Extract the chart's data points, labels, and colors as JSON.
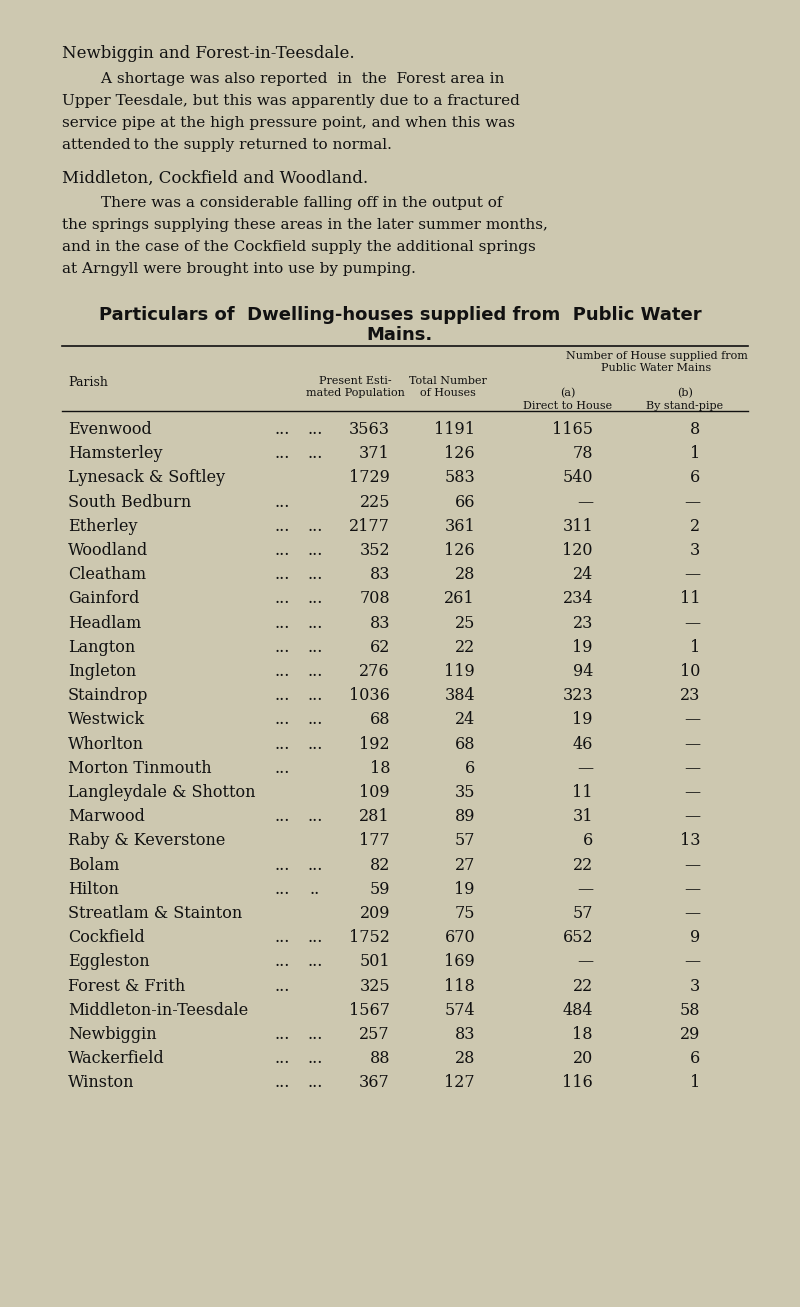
{
  "bg_color": "#cdc8b0",
  "text_color": "#111111",
  "title1": "Newbiggin and Forest-in-Teesdale.",
  "para1_lines": [
    "        A shortage was also reported  in  the  Forest area in",
    "Upper Teesdale, but this was apparently due to a fractured",
    "service pipe at the high pressure point, and when this was",
    "attended to the supply returned to normal."
  ],
  "title2": "Middleton, Cockfield and Woodland.",
  "para2_lines": [
    "        There was a considerable falling off in the output of",
    "the springs supplying these areas in the later summer months,",
    "and in the case of the Cockfield supply the additional springs",
    "at Arngyll were brought into use by pumping."
  ],
  "table_title_line1": "Particulars of  Dwelling-houses supplied from  Public Water",
  "table_title_line2": "Mains.",
  "rows": [
    [
      "Evenwood",
      "...",
      "...",
      "3563",
      "1191",
      "1165",
      "8"
    ],
    [
      "Hamsterley",
      "...",
      "...",
      "371",
      "126",
      "78",
      "1"
    ],
    [
      "Lynesack & Softley",
      "",
      "",
      "1729",
      "583",
      "540",
      "6"
    ],
    [
      "South Bedburn",
      "...",
      "",
      "225",
      "66",
      "—",
      "—"
    ],
    [
      "Etherley",
      "...",
      "...",
      "2177",
      "361",
      "311",
      "2"
    ],
    [
      "Woodland",
      "...",
      "...",
      "352",
      "126",
      "120",
      "3"
    ],
    [
      "Cleatham",
      "...",
      "...",
      "83",
      "28",
      "24",
      "—"
    ],
    [
      "Gainford",
      "...",
      "...",
      "708",
      "261",
      "234",
      "11"
    ],
    [
      "Headlam",
      "...",
      "...",
      "83",
      "25",
      "23",
      "—"
    ],
    [
      "Langton",
      "...",
      "...",
      "62",
      "22",
      "19",
      "1"
    ],
    [
      "Ingleton",
      "...",
      "...",
      "276",
      "119",
      "94",
      "10"
    ],
    [
      "Staindrop",
      "...",
      "...",
      "1036",
      "384",
      "323",
      "23"
    ],
    [
      "Westwick",
      "...",
      "...",
      "68",
      "24",
      "19",
      "—"
    ],
    [
      "Whorlton",
      "...",
      "...",
      "192",
      "68",
      "46",
      "—"
    ],
    [
      "Morton Tinmouth",
      "...",
      "",
      "18",
      "6",
      "—",
      "—"
    ],
    [
      "Langleydale & Shotton",
      "",
      "",
      "109",
      "35",
      "11",
      "—"
    ],
    [
      "Marwood",
      "...",
      "...",
      "281",
      "89",
      "31",
      "—"
    ],
    [
      "Raby & Keverstone",
      "",
      "",
      "177",
      "57",
      "6",
      "13"
    ],
    [
      "Bolam",
      "...",
      "...",
      "82",
      "27",
      "22",
      "—"
    ],
    [
      "Hilton",
      "...",
      "..",
      "59",
      "19",
      "—",
      "—"
    ],
    [
      "Streatlam & Stainton",
      "",
      "",
      "209",
      "75",
      "57",
      "—"
    ],
    [
      "Cockfield",
      "...",
      "...",
      "1752",
      "670",
      "652",
      "9"
    ],
    [
      "Eggleston",
      "...",
      "...",
      "501",
      "169",
      "—",
      "—"
    ],
    [
      "Forest & Frith",
      "...",
      "",
      "325",
      "118",
      "22",
      "3"
    ],
    [
      "Middleton-in-Teesdale",
      "",
      "",
      "1567",
      "574",
      "484",
      "58"
    ],
    [
      "Newbiggin",
      "...",
      "...",
      "257",
      "83",
      "18",
      "29"
    ],
    [
      "Wackerfield",
      "...",
      "...",
      "88",
      "28",
      "20",
      "6"
    ],
    [
      "Winston",
      "...",
      "...",
      "367",
      "127",
      "116",
      "1"
    ]
  ]
}
